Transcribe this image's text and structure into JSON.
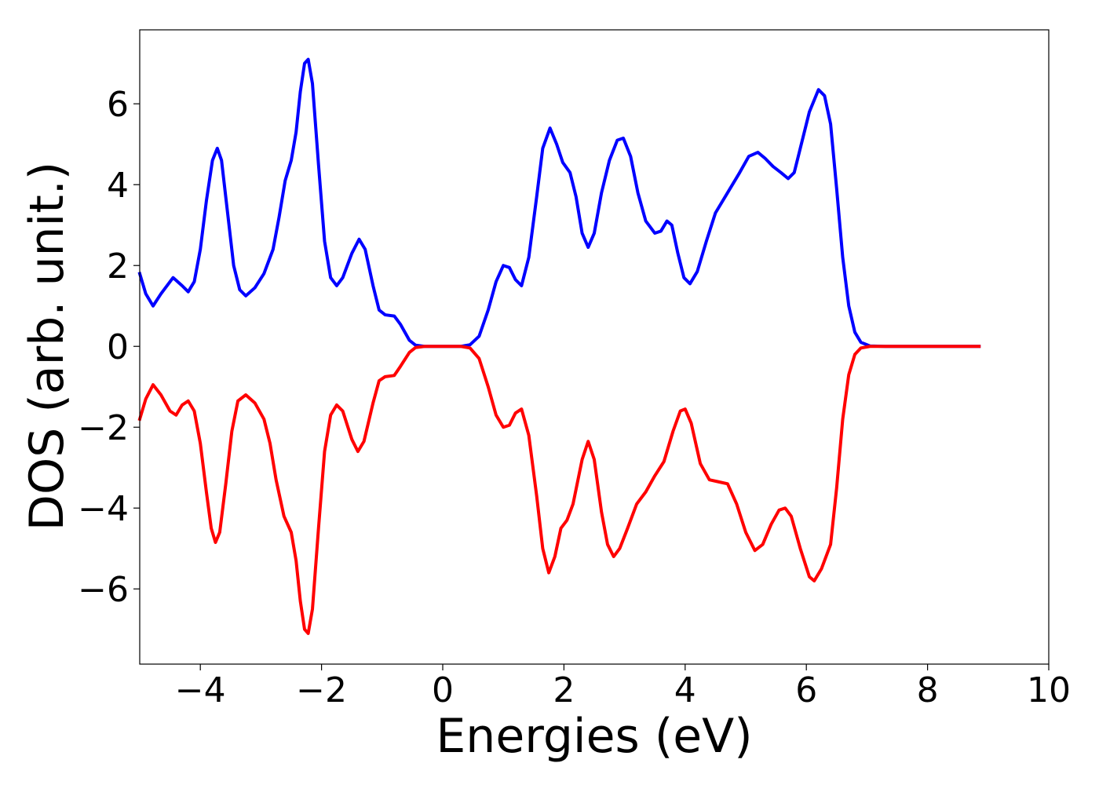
{
  "chart_data": {
    "type": "line",
    "xlabel": "Energies (eV)",
    "ylabel": "DOS (arb. unit.)",
    "xlim": [
      -5,
      10
    ],
    "ylim": [
      -7.86,
      7.83
    ],
    "xticks": [
      {
        "value": -4,
        "label": "−4"
      },
      {
        "value": -2,
        "label": "−2"
      },
      0,
      2,
      4,
      6,
      8,
      10
    ],
    "yticks": [
      {
        "value": -6,
        "label": "−6"
      },
      {
        "value": -4,
        "label": "−4"
      },
      {
        "value": -2,
        "label": "−2"
      },
      0,
      2,
      4,
      6
    ],
    "series": [
      {
        "color": "#0000ff",
        "x": [
          -5.0,
          -4.9,
          -4.78,
          -4.65,
          -4.45,
          -4.3,
          -4.2,
          -4.1,
          -4.0,
          -3.9,
          -3.8,
          -3.72,
          -3.65,
          -3.55,
          -3.45,
          -3.35,
          -3.25,
          -3.1,
          -2.95,
          -2.8,
          -2.7,
          -2.6,
          -2.5,
          -2.42,
          -2.35,
          -2.28,
          -2.22,
          -2.15,
          -2.05,
          -1.95,
          -1.85,
          -1.75,
          -1.65,
          -1.5,
          -1.38,
          -1.28,
          -1.15,
          -1.05,
          -0.95,
          -0.8,
          -0.7,
          -0.55,
          -0.45,
          -0.3,
          0.3,
          0.45,
          0.6,
          0.75,
          0.88,
          1.0,
          1.1,
          1.2,
          1.3,
          1.42,
          1.55,
          1.65,
          1.77,
          1.88,
          1.98,
          2.1,
          2.2,
          2.3,
          2.4,
          2.5,
          2.62,
          2.75,
          2.88,
          2.98,
          3.1,
          3.22,
          3.35,
          3.5,
          3.6,
          3.7,
          3.78,
          3.88,
          3.98,
          4.08,
          4.2,
          4.35,
          4.5,
          4.7,
          4.9,
          5.05,
          5.2,
          5.32,
          5.45,
          5.58,
          5.7,
          5.8,
          5.9,
          6.05,
          6.2,
          6.3,
          6.4,
          6.5,
          6.6,
          6.7,
          6.8,
          6.9,
          7.05,
          7.3,
          8.85
        ],
        "values": [
          1.8,
          1.3,
          1.0,
          1.3,
          1.7,
          1.5,
          1.35,
          1.6,
          2.4,
          3.6,
          4.6,
          4.9,
          4.6,
          3.3,
          2.0,
          1.4,
          1.25,
          1.45,
          1.8,
          2.4,
          3.2,
          4.1,
          4.6,
          5.3,
          6.3,
          7.0,
          7.1,
          6.5,
          4.5,
          2.6,
          1.7,
          1.5,
          1.7,
          2.3,
          2.65,
          2.4,
          1.5,
          0.9,
          0.78,
          0.75,
          0.55,
          0.15,
          0.03,
          0,
          0,
          0.04,
          0.25,
          0.9,
          1.6,
          2.0,
          1.95,
          1.65,
          1.5,
          2.2,
          3.7,
          4.9,
          5.4,
          5.0,
          4.55,
          4.3,
          3.7,
          2.8,
          2.45,
          2.8,
          3.8,
          4.6,
          5.1,
          5.15,
          4.7,
          3.8,
          3.1,
          2.8,
          2.85,
          3.1,
          3.0,
          2.3,
          1.7,
          1.55,
          1.85,
          2.6,
          3.3,
          3.8,
          4.3,
          4.7,
          4.8,
          4.65,
          4.45,
          4.3,
          4.15,
          4.3,
          4.9,
          5.8,
          6.35,
          6.2,
          5.5,
          3.9,
          2.2,
          1.0,
          0.35,
          0.1,
          0.01,
          0,
          0
        ]
      },
      {
        "color": "#ff0000",
        "x": [
          -5.0,
          -4.9,
          -4.78,
          -4.65,
          -4.5,
          -4.4,
          -4.3,
          -4.2,
          -4.1,
          -4.0,
          -3.9,
          -3.82,
          -3.75,
          -3.68,
          -3.58,
          -3.48,
          -3.38,
          -3.25,
          -3.1,
          -2.95,
          -2.85,
          -2.75,
          -2.62,
          -2.5,
          -2.42,
          -2.35,
          -2.28,
          -2.22,
          -2.15,
          -2.05,
          -1.95,
          -1.85,
          -1.75,
          -1.65,
          -1.5,
          -1.4,
          -1.3,
          -1.15,
          -1.05,
          -0.95,
          -0.8,
          -0.7,
          -0.55,
          -0.45,
          -0.3,
          0.3,
          0.45,
          0.6,
          0.75,
          0.88,
          1.0,
          1.1,
          1.2,
          1.3,
          1.42,
          1.55,
          1.65,
          1.75,
          1.85,
          1.95,
          2.05,
          2.15,
          2.3,
          2.4,
          2.5,
          2.62,
          2.72,
          2.82,
          2.92,
          3.05,
          3.2,
          3.35,
          3.5,
          3.65,
          3.8,
          3.92,
          4.0,
          4.1,
          4.25,
          4.4,
          4.55,
          4.7,
          4.85,
          5.0,
          5.15,
          5.28,
          5.42,
          5.55,
          5.65,
          5.75,
          5.9,
          6.05,
          6.13,
          6.25,
          6.4,
          6.5,
          6.6,
          6.7,
          6.8,
          6.9,
          7.05,
          8.85
        ],
        "values": [
          -1.8,
          -1.3,
          -0.95,
          -1.2,
          -1.6,
          -1.7,
          -1.45,
          -1.35,
          -1.6,
          -2.4,
          -3.6,
          -4.5,
          -4.85,
          -4.6,
          -3.4,
          -2.1,
          -1.35,
          -1.2,
          -1.4,
          -1.8,
          -2.4,
          -3.3,
          -4.2,
          -4.6,
          -5.3,
          -6.3,
          -7.0,
          -7.1,
          -6.5,
          -4.5,
          -2.6,
          -1.7,
          -1.45,
          -1.6,
          -2.3,
          -2.6,
          -2.35,
          -1.4,
          -0.85,
          -0.75,
          -0.72,
          -0.5,
          -0.15,
          -0.03,
          0,
          0,
          -0.04,
          -0.3,
          -1.0,
          -1.7,
          -2.0,
          -1.95,
          -1.65,
          -1.55,
          -2.2,
          -3.7,
          -5.0,
          -5.6,
          -5.2,
          -4.5,
          -4.3,
          -3.9,
          -2.8,
          -2.35,
          -2.8,
          -4.1,
          -4.9,
          -5.2,
          -5.0,
          -4.5,
          -3.9,
          -3.6,
          -3.2,
          -2.85,
          -2.1,
          -1.6,
          -1.55,
          -1.9,
          -2.9,
          -3.3,
          -3.35,
          -3.4,
          -3.9,
          -4.6,
          -5.05,
          -4.9,
          -4.4,
          -4.05,
          -4.0,
          -4.2,
          -5.0,
          -5.7,
          -5.8,
          -5.5,
          -4.9,
          -3.5,
          -1.8,
          -0.7,
          -0.2,
          -0.04,
          0,
          0
        ]
      }
    ]
  }
}
